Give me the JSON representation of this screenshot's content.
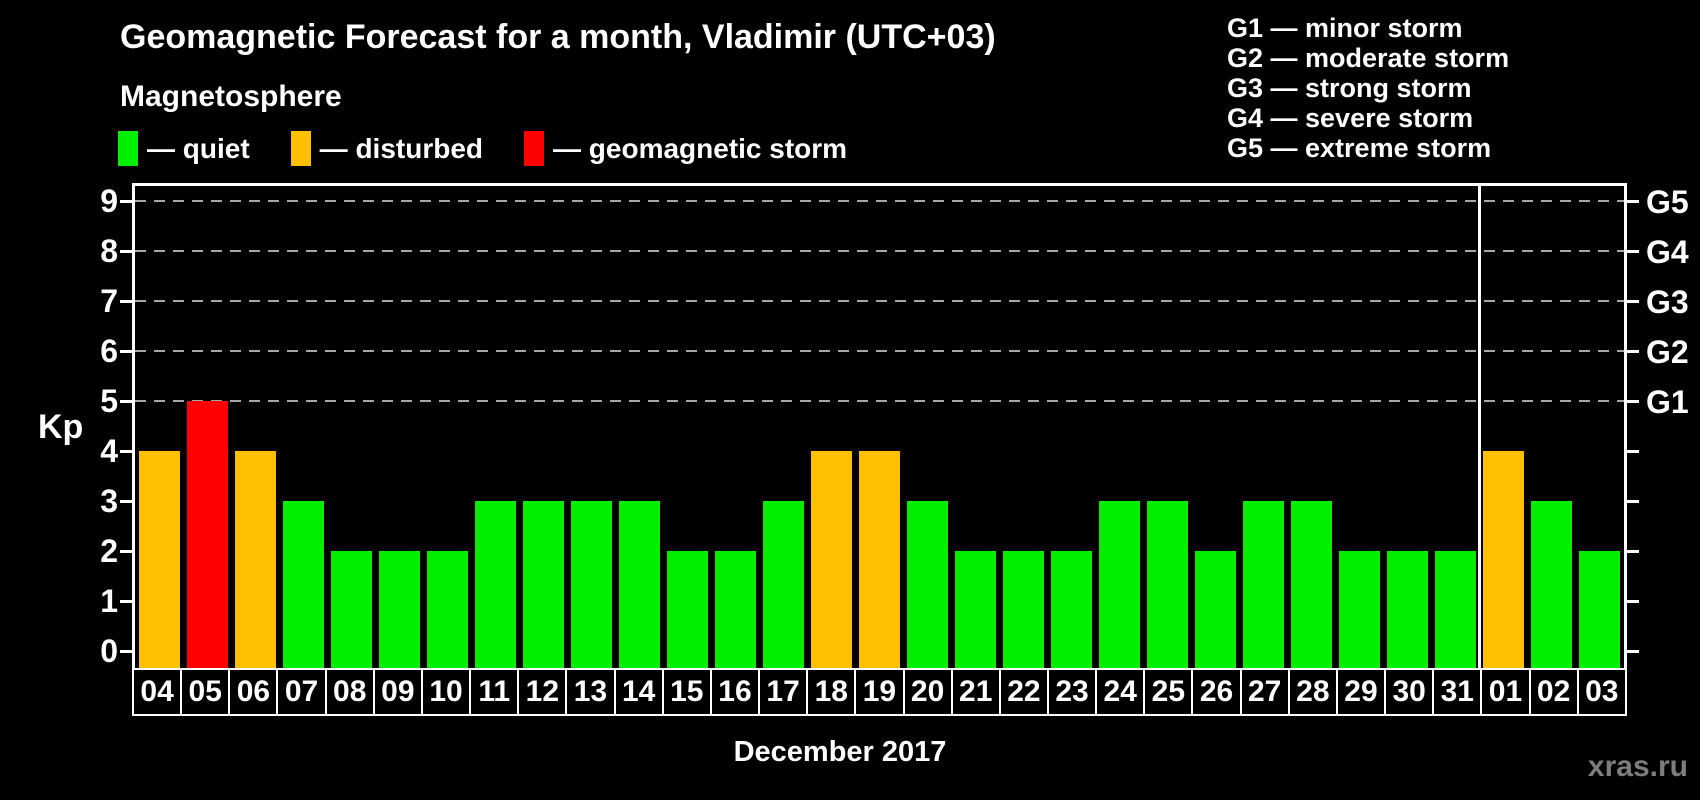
{
  "header": {
    "title": "Geomagnetic Forecast for a month, Vladimir (UTC+03)",
    "subtitle": "Magnetosphere"
  },
  "legend": {
    "items": [
      {
        "key": "quiet",
        "label": "— quiet",
        "color": "#00EE00"
      },
      {
        "key": "disturbed",
        "label": "— disturbed",
        "color": "#FFC000"
      },
      {
        "key": "storm",
        "label": "— geomagnetic storm",
        "color": "#FF0000"
      }
    ]
  },
  "g_legend": {
    "lines": [
      "G1 — minor storm",
      "G2 — moderate storm",
      "G3 — strong storm",
      "G4 — severe storm",
      "G5 — extreme storm"
    ]
  },
  "axes": {
    "y_label": "Kp",
    "y_ticks": [
      0,
      1,
      2,
      3,
      4,
      5,
      6,
      7,
      8,
      9
    ],
    "right_labels": [
      {
        "text": "G1",
        "kp": 5
      },
      {
        "text": "G2",
        "kp": 6
      },
      {
        "text": "G3",
        "kp": 7
      },
      {
        "text": "G4",
        "kp": 8
      },
      {
        "text": "G5",
        "kp": 9
      }
    ],
    "x_label": "December 2017"
  },
  "watermark": "xras.ru",
  "chart_data": {
    "type": "bar",
    "title": "Geomagnetic Forecast for a month, Vladimir (UTC+03)",
    "xlabel": "December 2017",
    "ylabel": "Kp",
    "ylim": [
      0,
      9
    ],
    "grid": "dashed horizontal lines at Kp 5-9 only",
    "legend_position": "top",
    "categories": [
      "04",
      "05",
      "06",
      "07",
      "08",
      "09",
      "10",
      "11",
      "12",
      "13",
      "14",
      "15",
      "16",
      "17",
      "18",
      "19",
      "20",
      "21",
      "22",
      "23",
      "24",
      "25",
      "26",
      "27",
      "28",
      "29",
      "30",
      "31",
      "01",
      "02",
      "03"
    ],
    "values": [
      4,
      5,
      4,
      3,
      2,
      2,
      2,
      3,
      3,
      3,
      3,
      2,
      2,
      3,
      4,
      4,
      3,
      2,
      2,
      2,
      3,
      3,
      2,
      3,
      3,
      2,
      2,
      2,
      4,
      3,
      2
    ],
    "levels": [
      "disturbed",
      "storm",
      "disturbed",
      "quiet",
      "quiet",
      "quiet",
      "quiet",
      "quiet",
      "quiet",
      "quiet",
      "quiet",
      "quiet",
      "quiet",
      "quiet",
      "disturbed",
      "disturbed",
      "quiet",
      "quiet",
      "quiet",
      "quiet",
      "quiet",
      "quiet",
      "quiet",
      "quiet",
      "quiet",
      "quiet",
      "quiet",
      "quiet",
      "disturbed",
      "quiet",
      "quiet"
    ],
    "level_colors": {
      "quiet": "#00EE00",
      "disturbed": "#FFC000",
      "storm": "#FF0000"
    },
    "gridlines_at": [
      5,
      6,
      7,
      8,
      9
    ],
    "separator_after_index": 27
  },
  "colors": {
    "background": "#000000",
    "axis": "#FFFFFF",
    "gridline": "#A6A6A6",
    "watermark": "#7D7D7D"
  }
}
